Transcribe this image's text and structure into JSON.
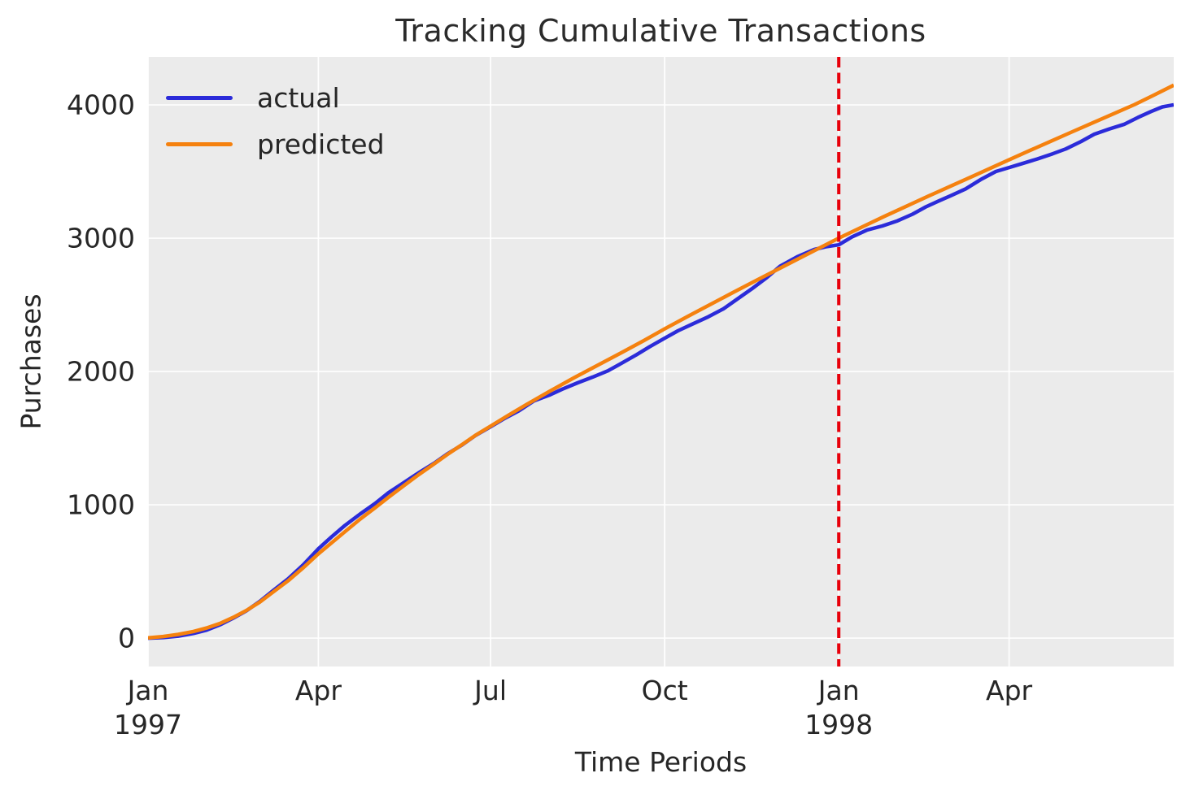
{
  "chart_data": {
    "type": "line",
    "title": "Tracking Cumulative Transactions",
    "xlabel": "Time Periods",
    "ylabel": "Purchases",
    "grid": true,
    "legend_position": "upper left",
    "x_axis": {
      "unit": "days since 1997-01-01",
      "domain": [
        0,
        542
      ],
      "ticks": [
        {
          "day": 0,
          "label": "Jan",
          "year": "1997"
        },
        {
          "day": 90,
          "label": "Apr",
          "year": ""
        },
        {
          "day": 181,
          "label": "Jul",
          "year": ""
        },
        {
          "day": 273,
          "label": "Oct",
          "year": ""
        },
        {
          "day": 365,
          "label": "Jan",
          "year": "1998"
        },
        {
          "day": 455,
          "label": "Apr",
          "year": ""
        }
      ]
    },
    "y_axis": {
      "range": [
        -213,
        4360
      ],
      "ticks": [
        0,
        1000,
        2000,
        3000,
        4000
      ]
    },
    "calibration_line": {
      "day": 365,
      "color": "#e8000b",
      "style": "dashed"
    },
    "series": [
      {
        "name": "actual",
        "color": "#2b2bd9",
        "points": [
          [
            0,
            0
          ],
          [
            8,
            4
          ],
          [
            16,
            15
          ],
          [
            24,
            35
          ],
          [
            31,
            60
          ],
          [
            38,
            100
          ],
          [
            45,
            150
          ],
          [
            52,
            205
          ],
          [
            59,
            275
          ],
          [
            66,
            355
          ],
          [
            74,
            445
          ],
          [
            82,
            550
          ],
          [
            90,
            670
          ],
          [
            97,
            760
          ],
          [
            104,
            845
          ],
          [
            112,
            930
          ],
          [
            120,
            1010
          ],
          [
            127,
            1090
          ],
          [
            135,
            1165
          ],
          [
            143,
            1240
          ],
          [
            151,
            1310
          ],
          [
            158,
            1380
          ],
          [
            166,
            1450
          ],
          [
            173,
            1520
          ],
          [
            181,
            1585
          ],
          [
            188,
            1645
          ],
          [
            196,
            1705
          ],
          [
            204,
            1780
          ],
          [
            212,
            1822
          ],
          [
            219,
            1868
          ],
          [
            227,
            1915
          ],
          [
            235,
            1958
          ],
          [
            243,
            2005
          ],
          [
            250,
            2060
          ],
          [
            258,
            2125
          ],
          [
            265,
            2185
          ],
          [
            273,
            2250
          ],
          [
            280,
            2305
          ],
          [
            288,
            2358
          ],
          [
            296,
            2410
          ],
          [
            304,
            2470
          ],
          [
            311,
            2540
          ],
          [
            319,
            2620
          ],
          [
            327,
            2705
          ],
          [
            334,
            2790
          ],
          [
            343,
            2860
          ],
          [
            352,
            2915
          ],
          [
            358,
            2935
          ],
          [
            365,
            2950
          ],
          [
            372,
            3010
          ],
          [
            380,
            3062
          ],
          [
            388,
            3092
          ],
          [
            396,
            3130
          ],
          [
            404,
            3180
          ],
          [
            411,
            3235
          ],
          [
            418,
            3280
          ],
          [
            424,
            3318
          ],
          [
            432,
            3370
          ],
          [
            440,
            3440
          ],
          [
            448,
            3500
          ],
          [
            455,
            3530
          ],
          [
            462,
            3560
          ],
          [
            470,
            3595
          ],
          [
            478,
            3633
          ],
          [
            485,
            3670
          ],
          [
            493,
            3725
          ],
          [
            500,
            3780
          ],
          [
            508,
            3820
          ],
          [
            516,
            3855
          ],
          [
            523,
            3905
          ],
          [
            530,
            3950
          ],
          [
            536,
            3985
          ],
          [
            542,
            4000
          ]
        ]
      },
      {
        "name": "predicted",
        "color": "#f5810e",
        "points": [
          [
            0,
            2
          ],
          [
            8,
            12
          ],
          [
            16,
            28
          ],
          [
            24,
            50
          ],
          [
            31,
            76
          ],
          [
            38,
            110
          ],
          [
            45,
            155
          ],
          [
            52,
            208
          ],
          [
            59,
            270
          ],
          [
            66,
            345
          ],
          [
            74,
            430
          ],
          [
            82,
            528
          ],
          [
            90,
            632
          ],
          [
            97,
            715
          ],
          [
            104,
            798
          ],
          [
            112,
            892
          ],
          [
            120,
            978
          ],
          [
            127,
            1056
          ],
          [
            135,
            1142
          ],
          [
            143,
            1226
          ],
          [
            151,
            1305
          ],
          [
            158,
            1376
          ],
          [
            166,
            1452
          ],
          [
            173,
            1521
          ],
          [
            181,
            1590
          ],
          [
            190,
            1668
          ],
          [
            200,
            1752
          ],
          [
            212,
            1850
          ],
          [
            225,
            1952
          ],
          [
            238,
            2050
          ],
          [
            250,
            2140
          ],
          [
            262,
            2232
          ],
          [
            273,
            2320
          ],
          [
            285,
            2412
          ],
          [
            297,
            2502
          ],
          [
            309,
            2592
          ],
          [
            321,
            2680
          ],
          [
            333,
            2768
          ],
          [
            345,
            2855
          ],
          [
            355,
            2928
          ],
          [
            365,
            3000
          ],
          [
            377,
            3082
          ],
          [
            389,
            3163
          ],
          [
            401,
            3242
          ],
          [
            413,
            3320
          ],
          [
            425,
            3396
          ],
          [
            437,
            3472
          ],
          [
            446,
            3530
          ],
          [
            455,
            3588
          ],
          [
            466,
            3658
          ],
          [
            477,
            3727
          ],
          [
            488,
            3796
          ],
          [
            499,
            3864
          ],
          [
            510,
            3932
          ],
          [
            521,
            4000
          ],
          [
            531,
            4070
          ],
          [
            542,
            4148
          ]
        ]
      }
    ],
    "colors": {
      "figure_bg": "#ffffff",
      "plot_bg": "#ebebeb",
      "grid": "#ffffff",
      "text": "#262626"
    }
  }
}
